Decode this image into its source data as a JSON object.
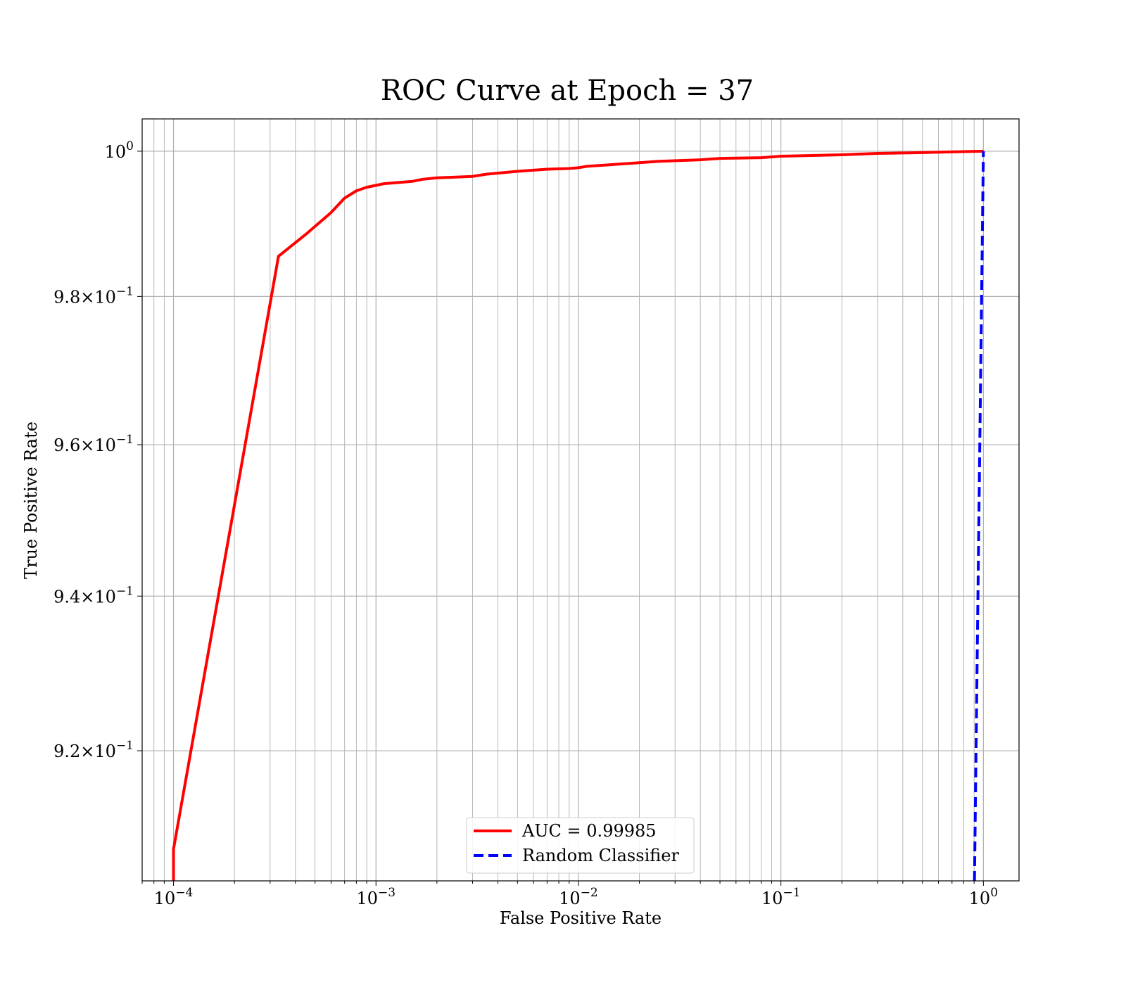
{
  "chart_data": {
    "type": "line",
    "title": "ROC Curve at Epoch = 37",
    "xlabel": "False Positive Rate",
    "ylabel": "True Positive Rate",
    "xscale": "log",
    "yscale": "log",
    "xlim": [
      7e-05,
      1.5
    ],
    "ylim": [
      0.9035,
      1.0045
    ],
    "grid": true,
    "grid_minor": true,
    "legend_position": "lower center",
    "x_ticks": [
      {
        "value": 0.0001,
        "base": "10",
        "exp": "−4"
      },
      {
        "value": 0.001,
        "base": "10",
        "exp": "−3"
      },
      {
        "value": 0.01,
        "base": "10",
        "exp": "−2"
      },
      {
        "value": 0.1,
        "base": "10",
        "exp": "−1"
      },
      {
        "value": 1,
        "base": "10",
        "exp": "0"
      }
    ],
    "y_ticks": [
      {
        "value": 1.0,
        "mant": "",
        "base": "10",
        "exp": "0"
      },
      {
        "value": 0.98,
        "mant": "9.8",
        "base": "10",
        "exp": "−1"
      },
      {
        "value": 0.96,
        "mant": "9.6",
        "base": "10",
        "exp": "−1"
      },
      {
        "value": 0.94,
        "mant": "9.4",
        "base": "10",
        "exp": "−1"
      },
      {
        "value": 0.92,
        "mant": "9.2",
        "base": "10",
        "exp": "−1"
      }
    ],
    "series": [
      {
        "name": "AUC = 0.99985",
        "color": "#ff0000",
        "style": "solid",
        "x": [
          0.0001,
          0.0001,
          0.00033,
          0.00045,
          0.0006,
          0.0007,
          0.0008,
          0.0009,
          0.0011,
          0.0015,
          0.0017,
          0.002,
          0.003,
          0.0035,
          0.005,
          0.007,
          0.009,
          0.01,
          0.011,
          0.014,
          0.02,
          0.025,
          0.04,
          0.05,
          0.08,
          0.1,
          0.2,
          0.3,
          0.5,
          0.7,
          1.0
        ],
        "y": [
          0.9035,
          0.9075,
          0.9855,
          0.9885,
          0.9915,
          0.9935,
          0.9945,
          0.995,
          0.9955,
          0.9958,
          0.9961,
          0.9963,
          0.9965,
          0.9968,
          0.9972,
          0.9975,
          0.9976,
          0.9977,
          0.9979,
          0.9981,
          0.9984,
          0.9986,
          0.9988,
          0.999,
          0.9991,
          0.9993,
          0.9995,
          0.9997,
          0.9998,
          0.9999,
          1.0
        ]
      },
      {
        "name": "Random Classifier",
        "color": "#0000ff",
        "style": "dashed",
        "x": [
          0.9035,
          1.0
        ],
        "y": [
          0.9035,
          1.0
        ]
      }
    ]
  }
}
